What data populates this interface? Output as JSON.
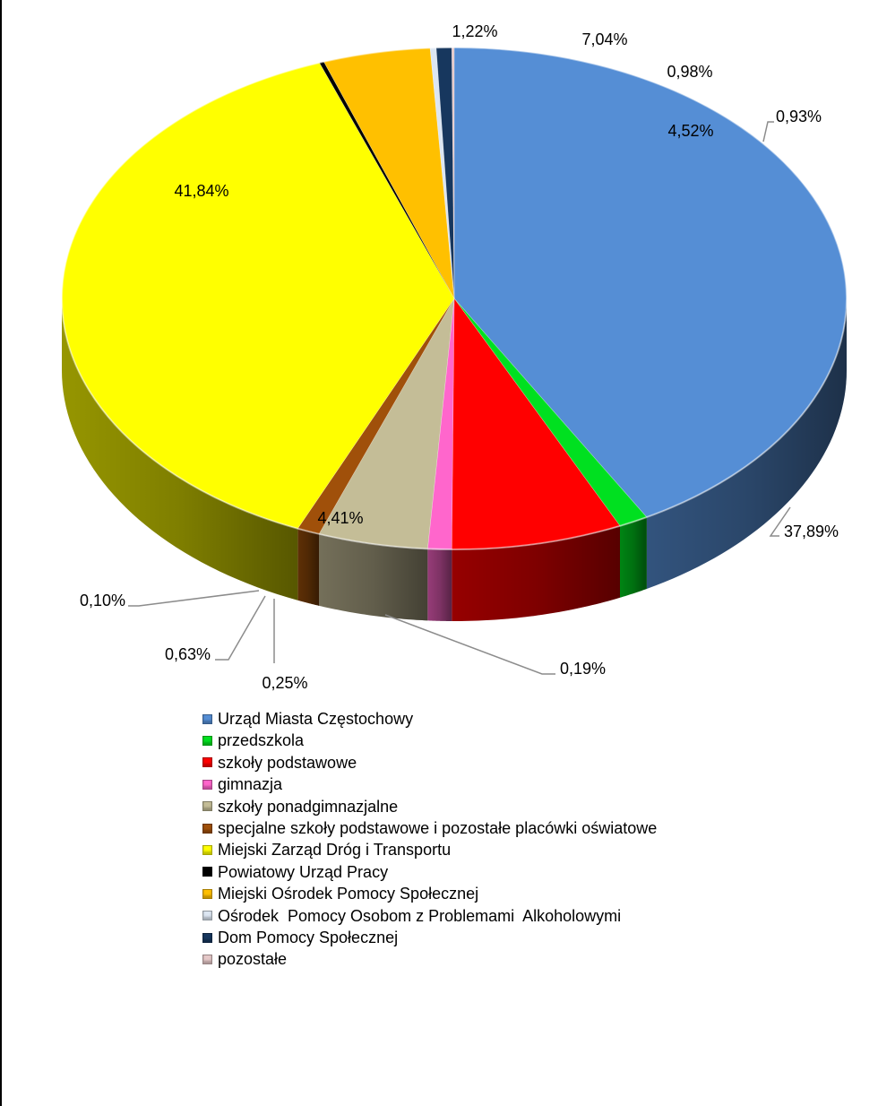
{
  "chart_data": {
    "type": "pie",
    "style": "3d",
    "slices": [
      {
        "label": "Urząd Miasta Częstochowy",
        "value": 41.84,
        "value_label": "41,84%",
        "color": "#558ED5"
      },
      {
        "label": "przedszkola",
        "value": 1.22,
        "value_label": "1,22%",
        "color": "#00E020"
      },
      {
        "label": "szkoły podstawowe",
        "value": 7.04,
        "value_label": "7,04%",
        "color": "#FF0000"
      },
      {
        "label": "gimnazja",
        "value": 0.98,
        "value_label": "0,98%",
        "color": "#FF66CC"
      },
      {
        "label": "szkoły ponadgimnazjalne",
        "value": 4.52,
        "value_label": "4,52%",
        "color": "#C4BD97"
      },
      {
        "label": "specjalne szkoły podstawowe i pozostałe placówki oświatowe",
        "value": 0.93,
        "value_label": "0,93%",
        "color": "#A0500A"
      },
      {
        "label": "Miejski Zarząd Dróg i Transportu",
        "value": 37.89,
        "value_label": "37,89%",
        "color": "#FFFF00"
      },
      {
        "label": "Powiatowy Urząd Pracy",
        "value": 0.19,
        "value_label": "0,19%",
        "color": "#000000"
      },
      {
        "label": "Miejski Ośrodek Pomocy Społecznej",
        "value": 4.41,
        "value_label": "4,41%",
        "color": "#FFC000"
      },
      {
        "label": "Ośrodek  Pomocy Osobom z Problemami  Alkoholowymi",
        "value": 0.25,
        "value_label": "0,25%",
        "color": "#DCE6F2"
      },
      {
        "label": "Dom Pomocy Społecznej",
        "value": 0.63,
        "value_label": "0,63%",
        "color": "#17375E"
      },
      {
        "label": "pozostałe",
        "value": 0.1,
        "value_label": "0,10%",
        "color": "#E6C9C9"
      }
    ],
    "legend_position": "bottom"
  }
}
